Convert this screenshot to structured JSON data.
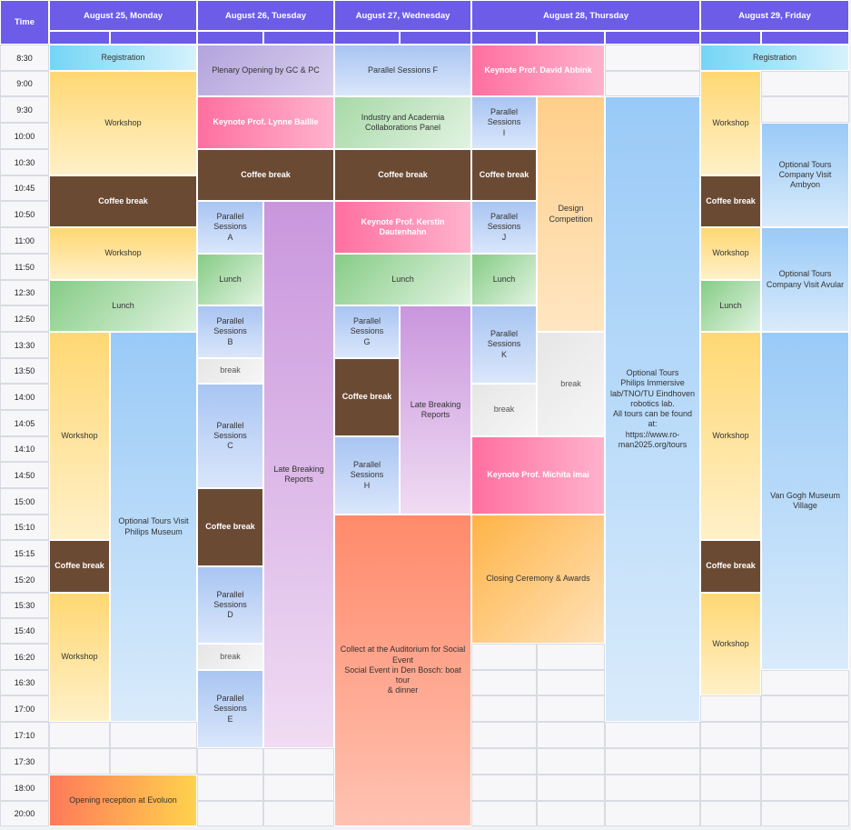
{
  "header": {
    "time_label": "Time",
    "days": [
      "August 25, Monday",
      "August 26, Tuesday",
      "August 27, Wednesday",
      "August 28, Thursday",
      "August 29, Friday"
    ]
  },
  "times": [
    "8:30",
    "9:00",
    "9:30",
    "10:00",
    "10:30",
    "10:45",
    "10:50",
    "11:00",
    "11:50",
    "12:30",
    "12:50",
    "13:30",
    "13:50",
    "14:00",
    "14:05",
    "14:10",
    "14:50",
    "15:00",
    "15:10",
    "15:15",
    "15:20",
    "15:30",
    "15:40",
    "16:20",
    "16:30",
    "17:00",
    "17:10",
    "17:30",
    "18:00",
    "20:00"
  ],
  "events": {
    "mon_registration": "Registration",
    "mon_workshop_1": "Workshop",
    "mon_coffee_1": "Coffee break",
    "mon_workshop_2": "Workshop",
    "mon_lunch": "Lunch",
    "mon_workshop_3": "Workshop",
    "mon_coffee_2": "Coffee break",
    "mon_workshop_4": "Workshop",
    "mon_tours": "Optional Tours Visit\nPhilips Museum",
    "mon_reception": "Opening reception at Evoluon",
    "tue_plenary": "Plenary Opening by GC & PC",
    "tue_keynote": "Keynote Prof. Lynne Baillie",
    "tue_coffee_1": "Coffee break",
    "tue_par_a": "Parallel Sessions\nA",
    "tue_lunch": "Lunch",
    "tue_par_b": "Parallel Sessions\nB",
    "tue_break_1": "break",
    "tue_par_c": "Parallel Sessions\nC",
    "tue_coffee_2": "Coffee break",
    "tue_par_d": "Parallel Sessions\nD",
    "tue_break_2": "break",
    "tue_par_e": "Parallel Sessions\nE",
    "tue_late": "Late Breaking\nReports",
    "wed_par_f": "Parallel Sessions F",
    "wed_panel": "Industry and Academia\nCollaborations Panel",
    "wed_coffee_1": "Coffee break",
    "wed_keynote": "Keynote Prof. Kerstin Dautenhahn",
    "wed_lunch": "Lunch",
    "wed_par_g": "Parallel Sessions\nG",
    "wed_coffee_2": "Coffee break",
    "wed_par_h": "Parallel Sessions\nH",
    "wed_late": "Late Breaking\nReports",
    "wed_social": "Collect at the Auditorium for Social\nEvent\nSocial Event in Den Bosch: boat tour\n& dinner",
    "thu_keynote_1": "Keynote Prof. David Abbink",
    "thu_par_i": "Parallel Sessions\nI",
    "thu_coffee": "Coffee break",
    "thu_par_j": "Parallel Sessions\nJ",
    "thu_lunch": "Lunch",
    "thu_par_k": "Parallel Sessions\nK",
    "thu_break_1": "break",
    "thu_design": "Design\nCompetition",
    "thu_break_2": "break",
    "thu_keynote_2": "Keynote Prof. Michita Imai",
    "thu_closing": "Closing Ceremony & Awards",
    "thu_tours": "Optional Tours\nPhilips Immersive\nlab/TNO/TU Eindhoven\nrobotics lab.\nAll tours can be found at:\nhttps://www.ro-\nman2025.org/tours",
    "fri_registration": "Registration",
    "fri_workshop_1": "Workshop",
    "fri_coffee_1": "Coffee break",
    "fri_workshop_2": "Workshop",
    "fri_lunch": "Lunch",
    "fri_workshop_3": "Workshop",
    "fri_coffee_2": "Coffee break",
    "fri_workshop_4": "Workshop",
    "fri_tour_ambyon": "Optional Tours\nCompany Visit\nAmbyon",
    "fri_tour_avular": "Optional Tours\nCompany Visit Avular",
    "fri_van_gogh": "Van Gogh Museum\nVillage"
  },
  "colors": {
    "header": "#6c5ce7",
    "coffee": "#6b4a34",
    "keynote": "#ff6fa0",
    "registration": "#74d5f5"
  }
}
